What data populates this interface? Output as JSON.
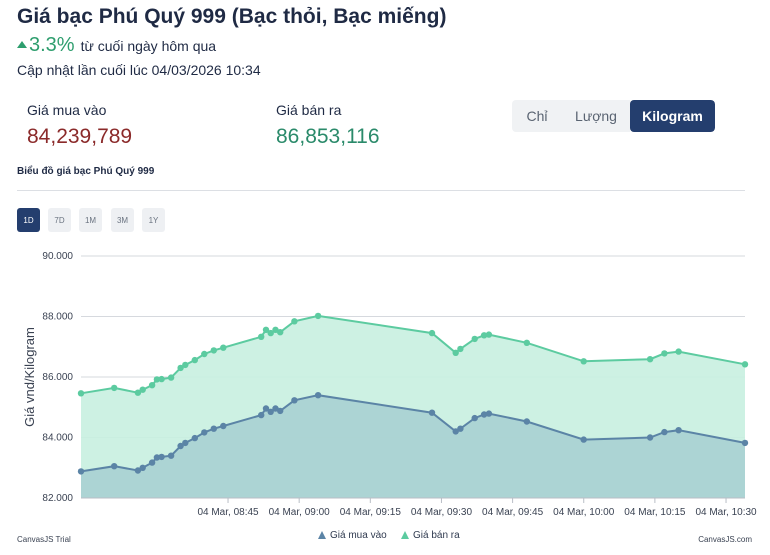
{
  "header": {
    "title": "Giá bạc Phú Quý 999 (Bạc thỏi, Bạc miếng)",
    "change_percent": "3.3%",
    "change_text": "từ cuối ngày hôm qua",
    "updated": "Cập nhật lần cuối lúc 04/03/2026 10:34"
  },
  "prices": {
    "buy_label": "Giá mua vào",
    "buy_value": "84,239,789",
    "sell_label": "Giá bán ra",
    "sell_value": "86,853,116"
  },
  "units": {
    "chi": "Chỉ",
    "luong": "Lượng",
    "kilogram": "Kilogram",
    "selected": "Kilogram"
  },
  "chart_title": "Biểu đồ giá bạc Phú Quý 999",
  "ranges": {
    "d1": "1D",
    "d7": "7D",
    "m1": "1M",
    "m3": "3M",
    "y1": "1Y",
    "selected": "1D"
  },
  "credits": {
    "left": "CanvasJS Trial",
    "right": "CanvasJS.com"
  },
  "colors": {
    "buy_line": "#5b84a6",
    "buy_fill": "#a9d0d1",
    "sell_line": "#5ccba0",
    "sell_fill": "#c8f0e0",
    "accent": "#243e6e"
  },
  "chart_data": {
    "type": "area",
    "ylabel": "Giá vnd/Kilogram",
    "ylim": [
      82000,
      90000
    ],
    "yticks": [
      "82.000",
      "84.000",
      "86.000",
      "88.000",
      "90.000"
    ],
    "xrange": [
      "08:14",
      "10:34"
    ],
    "xticks": [
      {
        "t": "08:45",
        "label": "04 Mar, 08:45"
      },
      {
        "t": "09:00",
        "label": "04 Mar, 09:00"
      },
      {
        "t": "09:15",
        "label": "04 Mar, 09:15"
      },
      {
        "t": "09:30",
        "label": "04 Mar, 09:30"
      },
      {
        "t": "09:45",
        "label": "04 Mar, 09:45"
      },
      {
        "t": "10:00",
        "label": "04 Mar, 10:00"
      },
      {
        "t": "10:15",
        "label": "04 Mar, 10:15"
      },
      {
        "t": "10:30",
        "label": "04 Mar, 10:30"
      }
    ],
    "grid": true,
    "legend_position": "bottom-center",
    "series": [
      {
        "name": "Giá bán ra",
        "points": [
          [
            "08:14",
            85460
          ],
          [
            "08:21",
            85640
          ],
          [
            "08:26",
            85480
          ],
          [
            "08:27",
            85580
          ],
          [
            "08:29",
            85730
          ],
          [
            "08:30",
            85920
          ],
          [
            "08:31",
            85930
          ],
          [
            "08:33",
            85980
          ],
          [
            "08:35",
            86300
          ],
          [
            "08:36",
            86400
          ],
          [
            "08:38",
            86560
          ],
          [
            "08:40",
            86760
          ],
          [
            "08:42",
            86880
          ],
          [
            "08:44",
            86970
          ],
          [
            "08:52",
            87330
          ],
          [
            "08:53",
            87560
          ],
          [
            "08:54",
            87450
          ],
          [
            "08:55",
            87560
          ],
          [
            "08:56",
            87480
          ],
          [
            "08:59",
            87840
          ],
          [
            "09:04",
            88020
          ],
          [
            "09:28",
            87450
          ],
          [
            "09:33",
            86800
          ],
          [
            "09:34",
            86930
          ],
          [
            "09:37",
            87260
          ],
          [
            "09:39",
            87380
          ],
          [
            "09:40",
            87400
          ],
          [
            "09:48",
            87130
          ],
          [
            "10:00",
            86520
          ],
          [
            "10:14",
            86590
          ],
          [
            "10:17",
            86780
          ],
          [
            "10:20",
            86840
          ],
          [
            "10:34",
            86420
          ]
        ]
      },
      {
        "name": "Giá mua vào",
        "points": [
          [
            "08:14",
            82880
          ],
          [
            "08:21",
            83050
          ],
          [
            "08:26",
            82910
          ],
          [
            "08:27",
            83000
          ],
          [
            "08:29",
            83170
          ],
          [
            "08:30",
            83340
          ],
          [
            "08:31",
            83360
          ],
          [
            "08:33",
            83400
          ],
          [
            "08:35",
            83720
          ],
          [
            "08:36",
            83820
          ],
          [
            "08:38",
            83980
          ],
          [
            "08:40",
            84170
          ],
          [
            "08:42",
            84290
          ],
          [
            "08:44",
            84380
          ],
          [
            "08:52",
            84740
          ],
          [
            "08:53",
            84960
          ],
          [
            "08:54",
            84850
          ],
          [
            "08:55",
            84960
          ],
          [
            "08:56",
            84880
          ],
          [
            "08:59",
            85230
          ],
          [
            "09:04",
            85400
          ],
          [
            "09:28",
            84820
          ],
          [
            "09:33",
            84200
          ],
          [
            "09:34",
            84290
          ],
          [
            "09:37",
            84640
          ],
          [
            "09:39",
            84760
          ],
          [
            "09:40",
            84790
          ],
          [
            "09:48",
            84530
          ],
          [
            "10:00",
            83930
          ],
          [
            "10:14",
            84000
          ],
          [
            "10:17",
            84180
          ],
          [
            "10:20",
            84240
          ],
          [
            "10:34",
            83820
          ]
        ]
      }
    ]
  }
}
